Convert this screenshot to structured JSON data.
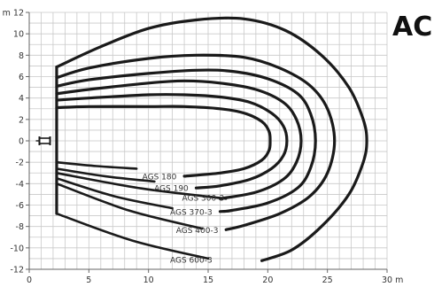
{
  "title": "AC",
  "chart_data": {
    "type": "line",
    "x_unit": "m",
    "y_unit": "m",
    "xlim": [
      0,
      30
    ],
    "ylim": [
      -12,
      12
    ],
    "xticks": [
      0,
      5,
      10,
      15,
      20,
      25,
      30
    ],
    "yticks": [
      -12,
      -10,
      -8,
      -6,
      -4,
      -2,
      0,
      2,
      4,
      6,
      8,
      10,
      12
    ],
    "x_tick_labels": [
      "0",
      "5",
      "10",
      "15",
      "20",
      "25",
      "30 m"
    ],
    "y_tick_labels": [
      "-12",
      "-10",
      "-8",
      "-6",
      "-4",
      "-2",
      "0",
      "2",
      "4",
      "6",
      "8",
      "10",
      "m 12"
    ],
    "grid": true,
    "series": [
      {
        "name": "AGS 180",
        "points": [
          [
            2.3,
            3.1
          ],
          [
            5,
            3.2
          ],
          [
            10,
            3.2
          ],
          [
            13,
            3.2
          ],
          [
            16,
            3.0
          ],
          [
            18,
            2.6
          ],
          [
            19.5,
            1.8
          ],
          [
            20.1,
            0.9
          ],
          [
            20.2,
            0
          ],
          [
            20.1,
            -0.9
          ],
          [
            19.5,
            -1.8
          ],
          [
            18,
            -2.6
          ],
          [
            16,
            -3.0
          ],
          [
            13,
            -3.3
          ]
        ],
        "label_point": [
          12.5,
          -3.3
        ],
        "lower_start": [
          2.3,
          -2.0
        ],
        "lower_end": [
          9.0,
          -2.6
        ]
      },
      {
        "name": "AGS 190",
        "points": [
          [
            2.3,
            3.8
          ],
          [
            5,
            4.0
          ],
          [
            10,
            4.3
          ],
          [
            13,
            4.3
          ],
          [
            16,
            4.1
          ],
          [
            18.5,
            3.6
          ],
          [
            20.3,
            2.6
          ],
          [
            21.3,
            1.4
          ],
          [
            21.6,
            0
          ],
          [
            21.3,
            -1.4
          ],
          [
            20.3,
            -2.6
          ],
          [
            18.5,
            -3.6
          ],
          [
            16,
            -4.2
          ],
          [
            14,
            -4.4
          ]
        ],
        "label_point": [
          13.5,
          -4.4
        ],
        "lower_start": [
          2.3,
          -2.6
        ],
        "lower_end": [
          10.5,
          -3.8
        ]
      },
      {
        "name": "AGS 300-3",
        "points": [
          [
            2.3,
            4.4
          ],
          [
            5,
            4.8
          ],
          [
            10,
            5.4
          ],
          [
            13,
            5.6
          ],
          [
            16,
            5.4
          ],
          [
            19,
            4.8
          ],
          [
            21.3,
            3.6
          ],
          [
            22.4,
            2.0
          ],
          [
            22.8,
            0
          ],
          [
            22.4,
            -2.0
          ],
          [
            21.3,
            -3.6
          ],
          [
            19,
            -4.8
          ],
          [
            16,
            -5.4
          ]
        ],
        "label_point": [
          16.5,
          -5.3
        ],
        "lower_start": [
          2.3,
          -3.0
        ],
        "lower_end": [
          16.5,
          -5.4
        ]
      },
      {
        "name": "AGS 370-3",
        "points": [
          [
            2.3,
            5.1
          ],
          [
            5,
            5.7
          ],
          [
            10,
            6.3
          ],
          [
            14,
            6.6
          ],
          [
            17,
            6.5
          ],
          [
            20,
            5.8
          ],
          [
            22.5,
            4.4
          ],
          [
            23.6,
            2.5
          ],
          [
            24.0,
            0
          ],
          [
            23.6,
            -2.5
          ],
          [
            22.5,
            -4.4
          ],
          [
            20,
            -5.8
          ],
          [
            17,
            -6.5
          ],
          [
            16,
            -6.6
          ]
        ],
        "label_point": [
          15.5,
          -6.6
        ],
        "lower_start": [
          2.3,
          -3.5
        ],
        "lower_end": [
          12.0,
          -6.3
        ]
      },
      {
        "name": "AGS 400-3",
        "points": [
          [
            2.3,
            5.9
          ],
          [
            5,
            6.8
          ],
          [
            10,
            7.7
          ],
          [
            14,
            8.0
          ],
          [
            18,
            7.8
          ],
          [
            21,
            6.8
          ],
          [
            23.5,
            5.2
          ],
          [
            25.0,
            3.0
          ],
          [
            25.6,
            0
          ],
          [
            25.0,
            -3.0
          ],
          [
            23.5,
            -5.2
          ],
          [
            21,
            -6.8
          ],
          [
            18,
            -7.9
          ],
          [
            16.5,
            -8.3
          ]
        ],
        "label_point": [
          16.0,
          -8.3
        ],
        "lower_start": [
          2.3,
          -4.0
        ],
        "lower_end": [
          14.5,
          -8.2
        ]
      },
      {
        "name": "AGS 600-3",
        "points": [
          [
            2.3,
            6.9
          ],
          [
            6,
            8.8
          ],
          [
            10,
            10.5
          ],
          [
            14,
            11.3
          ],
          [
            18,
            11.4
          ],
          [
            21.5,
            10.3
          ],
          [
            24.5,
            8.0
          ],
          [
            26.8,
            5.0
          ],
          [
            28.0,
            2.0
          ],
          [
            28.3,
            0
          ],
          [
            28.0,
            -2.0
          ],
          [
            26.8,
            -5.0
          ],
          [
            24.5,
            -8.0
          ],
          [
            22,
            -10.2
          ],
          [
            19.5,
            -11.2
          ]
        ],
        "label_point": [
          15.5,
          -11.1
        ],
        "lower_start": [
          2.3,
          -6.8
        ],
        "lower_end": [
          15.0,
          -11.0
        ]
      }
    ],
    "boom_x": 2.3,
    "boom_ylim": [
      -6.8,
      6.9
    ],
    "machine_symbol_at": [
      1.3,
      0
    ]
  },
  "colors": {
    "curve": "#1a1a1a",
    "grid": "#c9c9c9",
    "axis": "#666666",
    "text": "#333333",
    "title": "#111111"
  }
}
